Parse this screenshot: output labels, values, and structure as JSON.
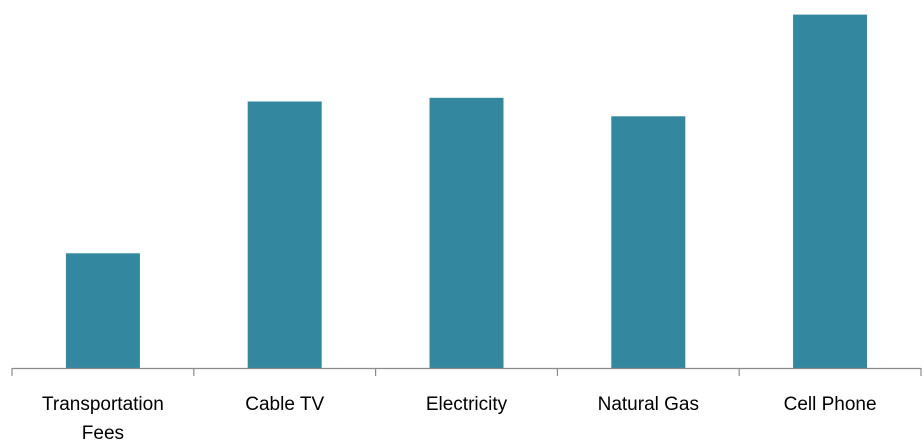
{
  "chart_data": {
    "type": "bar",
    "categories": [
      "Transportation Fees",
      "Cable TV",
      "Electricity",
      "Natural Gas",
      "Cell Phone"
    ],
    "category_label_lines": [
      [
        "Transportation",
        "Fees"
      ],
      [
        "Cable TV"
      ],
      [
        "Electricity"
      ],
      [
        "Natural Gas"
      ],
      [
        "Cell Phone"
      ]
    ],
    "values": [
      31,
      72,
      73,
      68,
      95.5
    ],
    "ylim": [
      0,
      97
    ],
    "title": "",
    "xlabel": "",
    "ylabel": "",
    "grid": false,
    "legend": "none",
    "colors": {
      "bar": "#33879E",
      "axis": "#8C8C8C"
    }
  }
}
